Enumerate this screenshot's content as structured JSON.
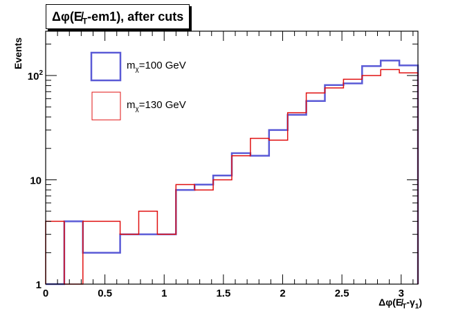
{
  "chart_data": {
    "type": "histogram-step",
    "title": "Δφ(E̸T-em1), after cuts",
    "title_parts": {
      "prefix": "Δφ(E̸",
      "sub": "T",
      "suffix": "-em1), after cuts"
    },
    "xlabel": "Δφ(E̸T-γ1)",
    "xlabel_parts": {
      "prefix": "Δφ(E̸",
      "sub1": "T",
      "mid": "-γ",
      "sub2": "1",
      "suffix": ")"
    },
    "ylabel": "Events",
    "xlim": [
      0,
      3.1416
    ],
    "ylim": [
      1,
      266
    ],
    "yscale": "log",
    "x_ticks": [
      "0",
      "0.5",
      "1",
      "1.5",
      "2",
      "2.5",
      "3"
    ],
    "x_tick_values": [
      0,
      0.5,
      1,
      1.5,
      2,
      2.5,
      3
    ],
    "y_ticks": [
      {
        "value": 1,
        "base": "1",
        "exp": ""
      },
      {
        "value": 10,
        "base": "10",
        "exp": ""
      },
      {
        "value": 100,
        "base": "10",
        "exp": "2"
      }
    ],
    "bin_edges_count": 20,
    "series": [
      {
        "name": "mχ=100 GeV",
        "legend_parts": {
          "prefix": "m",
          "sub": "χ",
          "suffix": "=100 GeV"
        },
        "color": "#5a5ad6",
        "values": [
          1,
          4,
          2,
          2,
          3,
          3,
          3,
          8,
          9,
          11,
          18,
          17,
          30,
          42,
          57,
          81,
          84,
          123,
          139,
          125
        ]
      },
      {
        "name": "mχ=130 GeV",
        "legend_parts": {
          "prefix": "m",
          "sub": "χ",
          "suffix": "=130 GeV"
        },
        "color": "#e01010",
        "values": [
          4,
          1,
          4,
          4,
          3,
          5,
          3,
          9,
          8,
          10,
          17,
          25,
          24,
          44,
          68,
          76,
          92,
          100,
          114,
          106
        ]
      }
    ],
    "legend_placement": "top-left"
  }
}
